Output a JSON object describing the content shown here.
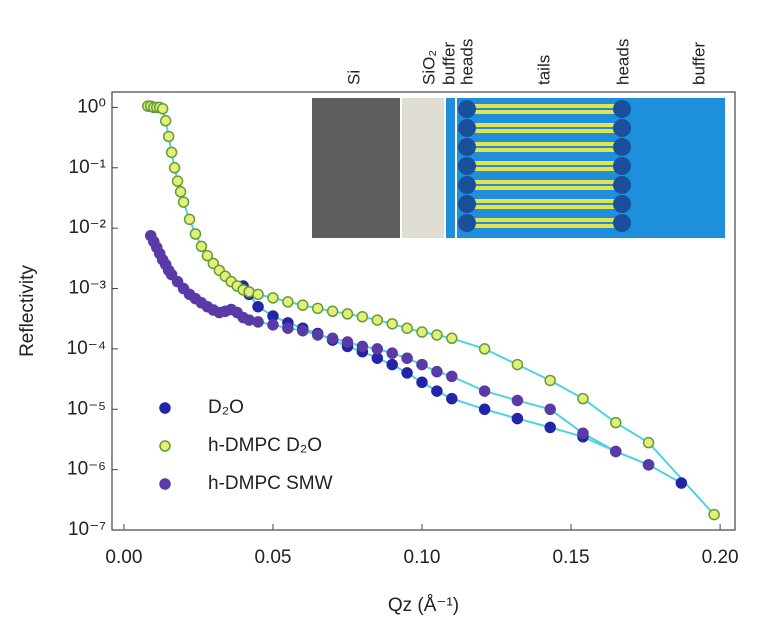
{
  "chart_data": {
    "type": "scatter",
    "x_label": "Qz (Å⁻¹)",
    "y_label": "Reflectivity",
    "log_y": true,
    "legend": "lower left",
    "fit_color": "#4fd3df",
    "xlim": [
      -0.004,
      0.205
    ],
    "ylim": [
      1e-07,
      1.8
    ],
    "xticks": [
      {
        "value": 0,
        "label": "0.00"
      },
      {
        "value": 0.05,
        "label": "0.05"
      },
      {
        "value": 0.1,
        "label": "0.10"
      },
      {
        "value": 0.15,
        "label": "0.15"
      },
      {
        "value": 0.2,
        "label": "0.20"
      }
    ],
    "yticks": [
      {
        "value": 1,
        "label": "10⁰"
      },
      {
        "value": 0.1,
        "label": "10⁻¹"
      },
      {
        "value": 0.01,
        "label": "10⁻²"
      },
      {
        "value": 0.001,
        "label": "10⁻³"
      },
      {
        "value": 0.0001,
        "label": "10⁻⁴"
      },
      {
        "value": 1e-05,
        "label": "10⁻⁵"
      },
      {
        "value": 1e-06,
        "label": "10⁻⁶"
      },
      {
        "value": 1e-07,
        "label": "10⁻⁷"
      }
    ],
    "inset_labels": [
      "Si",
      "SiO₂",
      "buffer",
      "heads",
      "tails",
      "heads",
      "buffer"
    ],
    "series": [
      {
        "name": "D₂O",
        "color": "#2424a8",
        "stroke": "#2424a8",
        "x": [
          0.04,
          0.042,
          0.045,
          0.05,
          0.055,
          0.06,
          0.065,
          0.07,
          0.075,
          0.08,
          0.085,
          0.09,
          0.095,
          0.1,
          0.105,
          0.11,
          0.121,
          0.132,
          0.143,
          0.154,
          0.165,
          0.176,
          0.187
        ],
        "values": [
          0.0011,
          0.0008,
          0.0005,
          0.00035,
          0.00027,
          0.00022,
          0.00018,
          0.00014,
          0.00011,
          9e-05,
          7e-05,
          5.5e-05,
          4e-05,
          2.8e-05,
          2e-05,
          1.5e-05,
          1e-05,
          7e-06,
          5e-06,
          3.5e-06,
          2e-06,
          1.2e-06,
          6e-07
        ]
      },
      {
        "name": "h-DMPC D₂O",
        "color": "#e6ee78",
        "stroke": "#5f9e3a",
        "x": [
          0.008,
          0.009,
          0.01,
          0.011,
          0.012,
          0.013,
          0.014,
          0.015,
          0.016,
          0.017,
          0.018,
          0.019,
          0.02,
          0.022,
          0.024,
          0.026,
          0.028,
          0.03,
          0.032,
          0.034,
          0.036,
          0.038,
          0.04,
          0.042,
          0.045,
          0.05,
          0.055,
          0.06,
          0.065,
          0.07,
          0.075,
          0.08,
          0.085,
          0.09,
          0.095,
          0.1,
          0.105,
          0.11,
          0.121,
          0.132,
          0.143,
          0.154,
          0.165,
          0.176,
          0.198
        ],
        "values": [
          1.05,
          1.05,
          1.0,
          1.0,
          1.0,
          0.95,
          0.6,
          0.33,
          0.18,
          0.1,
          0.06,
          0.04,
          0.027,
          0.014,
          0.008,
          0.005,
          0.0035,
          0.0026,
          0.002,
          0.0016,
          0.0013,
          0.0011,
          0.00095,
          0.00088,
          0.0008,
          0.0007,
          0.0006,
          0.00053,
          0.00047,
          0.00042,
          0.00038,
          0.00034,
          0.0003,
          0.00026,
          0.00022,
          0.00019,
          0.00017,
          0.00015,
          0.0001,
          5.5e-05,
          3e-05,
          1.5e-05,
          6e-06,
          2.8e-06,
          1.8e-07
        ]
      },
      {
        "name": "h-DMPC SMW",
        "color": "#5a3aa6",
        "stroke": "#5a3aa6",
        "x": [
          0.009,
          0.01,
          0.011,
          0.012,
          0.013,
          0.014,
          0.015,
          0.016,
          0.018,
          0.02,
          0.022,
          0.024,
          0.026,
          0.028,
          0.03,
          0.032,
          0.034,
          0.036,
          0.038,
          0.04,
          0.042,
          0.045,
          0.05,
          0.055,
          0.06,
          0.065,
          0.07,
          0.075,
          0.08,
          0.085,
          0.09,
          0.095,
          0.1,
          0.105,
          0.11,
          0.121,
          0.132,
          0.143,
          0.154,
          0.165,
          0.176
        ],
        "values": [
          0.0075,
          0.006,
          0.0048,
          0.0038,
          0.003,
          0.0025,
          0.002,
          0.0017,
          0.0013,
          0.001,
          0.0008,
          0.00068,
          0.00058,
          0.0005,
          0.00044,
          0.0004,
          0.00042,
          0.00045,
          0.0004,
          0.00033,
          0.0003,
          0.00028,
          0.00025,
          0.00022,
          0.0002,
          0.00017,
          0.00015,
          0.00013,
          0.00011,
          0.0001,
          8.5e-05,
          7e-05,
          5.5e-05,
          4.2e-05,
          3.5e-05,
          2e-05,
          1.4e-05,
          1e-05,
          4e-06,
          2e-06,
          1.2e-06
        ]
      }
    ]
  }
}
